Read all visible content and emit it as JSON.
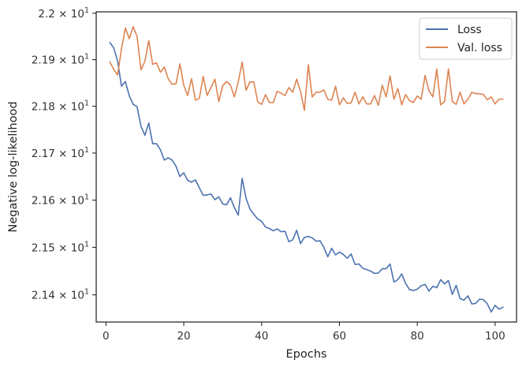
{
  "chart_data": {
    "type": "line",
    "xlabel": "Epochs",
    "ylabel": "Negative log-likelihood",
    "xlim": [
      -2.5,
      105.5
    ],
    "ylim": [
      21.343,
      22.003
    ],
    "yscale": "log",
    "x_ticks": [
      0,
      20,
      40,
      60,
      80,
      100
    ],
    "x_tick_labels": [
      "0",
      "20",
      "40",
      "60",
      "80",
      "100"
    ],
    "y_ticks": [
      21.4,
      21.5,
      21.6,
      21.7,
      21.8,
      21.9,
      22.0
    ],
    "y_tick_labels": [
      {
        "base": "2.14",
        "exp": "1"
      },
      {
        "base": "2.15",
        "exp": "1"
      },
      {
        "base": "2.16",
        "exp": "1"
      },
      {
        "base": "2.17",
        "exp": "1"
      },
      {
        "base": "2.18",
        "exp": "1"
      },
      {
        "base": "2.19",
        "exp": "1"
      },
      {
        "base": "2.2",
        "exp": "1"
      }
    ],
    "y_tick_times": "×",
    "y_tick_mantissa_base": "10",
    "legend_position": "top-right",
    "grid": false,
    "series": [
      {
        "name": "Loss",
        "color": "#4c72b0",
        "x": [
          1,
          2,
          3,
          4,
          5,
          6,
          7,
          8,
          9,
          10,
          11,
          12,
          13,
          14,
          15,
          16,
          17,
          18,
          19,
          20,
          21,
          22,
          23,
          24,
          25,
          26,
          27,
          28,
          29,
          30,
          31,
          32,
          33,
          34,
          35,
          36,
          37,
          38,
          39,
          40,
          41,
          42,
          43,
          44,
          45,
          46,
          47,
          48,
          49,
          50,
          51,
          52,
          53,
          54,
          55,
          56,
          57,
          58,
          59,
          60,
          61,
          62,
          63,
          64,
          65,
          66,
          67,
          68,
          69,
          70,
          71,
          72,
          73,
          74,
          75,
          76,
          77,
          78,
          79,
          80,
          81,
          82,
          83,
          84,
          85,
          86,
          87,
          88,
          89,
          90,
          91,
          92,
          93,
          94,
          95,
          96,
          97,
          98,
          99,
          100,
          101,
          102
        ],
        "values": [
          21.937,
          21.925,
          21.897,
          21.843,
          21.853,
          21.822,
          21.804,
          21.799,
          21.757,
          21.738,
          21.764,
          21.72,
          21.72,
          21.707,
          21.685,
          21.69,
          21.685,
          21.672,
          21.65,
          21.658,
          21.642,
          21.638,
          21.643,
          21.626,
          21.61,
          21.611,
          21.613,
          21.601,
          21.607,
          21.592,
          21.59,
          21.605,
          21.584,
          21.568,
          21.646,
          21.604,
          21.581,
          21.57,
          21.56,
          21.555,
          21.543,
          21.54,
          21.535,
          21.539,
          21.533,
          21.534,
          21.512,
          21.516,
          21.536,
          21.508,
          21.521,
          21.523,
          21.52,
          21.513,
          21.514,
          21.5,
          21.48,
          21.498,
          21.484,
          21.49,
          21.485,
          21.477,
          21.486,
          21.464,
          21.465,
          21.456,
          21.453,
          21.45,
          21.445,
          21.446,
          21.455,
          21.455,
          21.465,
          21.427,
          21.432,
          21.444,
          21.424,
          21.411,
          21.409,
          21.412,
          21.419,
          21.422,
          21.408,
          21.418,
          21.415,
          21.432,
          21.423,
          21.43,
          21.401,
          21.42,
          21.392,
          21.389,
          21.398,
          21.381,
          21.382,
          21.391,
          21.39,
          21.381,
          21.364,
          21.378,
          21.37,
          21.374
        ]
      },
      {
        "name": "Val. loss",
        "color": "#dd8452",
        "x": [
          1,
          2,
          3,
          4,
          5,
          6,
          7,
          8,
          9,
          10,
          11,
          12,
          13,
          14,
          15,
          16,
          17,
          18,
          19,
          20,
          21,
          22,
          23,
          24,
          25,
          26,
          27,
          28,
          29,
          30,
          31,
          32,
          33,
          34,
          35,
          36,
          37,
          38,
          39,
          40,
          41,
          42,
          43,
          44,
          45,
          46,
          47,
          48,
          49,
          50,
          51,
          52,
          53,
          54,
          55,
          56,
          57,
          58,
          59,
          60,
          61,
          62,
          63,
          64,
          65,
          66,
          67,
          68,
          69,
          70,
          71,
          72,
          73,
          74,
          75,
          76,
          77,
          78,
          79,
          80,
          81,
          82,
          83,
          84,
          85,
          86,
          87,
          88,
          89,
          90,
          91,
          92,
          93,
          94,
          95,
          96,
          97,
          98,
          99,
          100,
          101,
          102
        ],
        "values": [
          21.895,
          21.879,
          21.867,
          21.924,
          21.968,
          21.945,
          21.971,
          21.95,
          21.878,
          21.896,
          21.941,
          21.89,
          21.893,
          21.873,
          21.884,
          21.859,
          21.847,
          21.848,
          21.891,
          21.845,
          21.823,
          21.859,
          21.813,
          21.817,
          21.864,
          21.823,
          21.84,
          21.858,
          21.81,
          21.844,
          21.853,
          21.845,
          21.82,
          21.852,
          21.895,
          21.834,
          21.852,
          21.852,
          21.809,
          21.804,
          21.825,
          21.808,
          21.808,
          21.832,
          21.828,
          21.823,
          21.84,
          21.83,
          21.858,
          21.832,
          21.791,
          21.889,
          21.82,
          21.83,
          21.83,
          21.835,
          21.815,
          21.813,
          21.843,
          21.803,
          21.818,
          21.806,
          21.807,
          21.83,
          21.805,
          21.82,
          21.805,
          21.805,
          21.823,
          21.802,
          21.845,
          21.82,
          21.865,
          21.815,
          21.838,
          21.803,
          21.825,
          21.812,
          21.808,
          21.822,
          21.815,
          21.866,
          21.833,
          21.82,
          21.88,
          21.803,
          21.81,
          21.88,
          21.81,
          21.804,
          21.83,
          21.805,
          21.815,
          21.83,
          21.827,
          21.827,
          21.825,
          21.814,
          21.82,
          21.805,
          21.815,
          21.815
        ]
      }
    ]
  }
}
